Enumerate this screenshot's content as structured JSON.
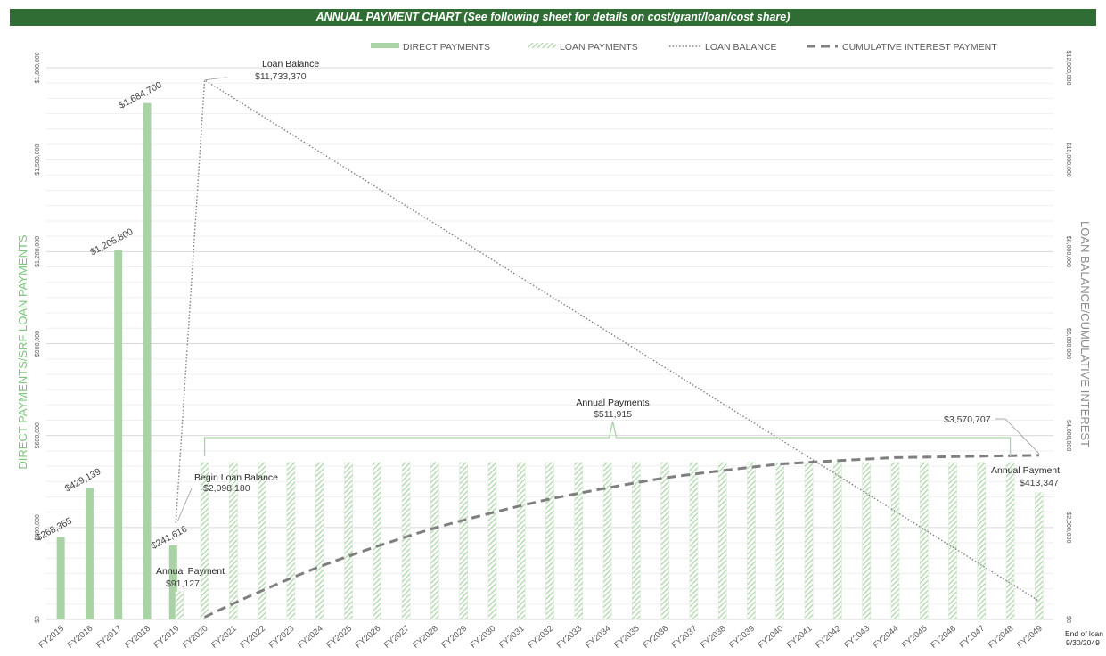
{
  "title": "ANNUAL PAYMENT CHART (See following sheet for details on cost/grant/loan/cost share)",
  "colors": {
    "title_bg": "#2f6d35",
    "direct": "#a9d3a5",
    "loan_hatch": "#a9d3a5",
    "loan_balance": "#7f7f7f",
    "cumulative_interest": "#7f7f7f",
    "left_axis_title": "#7bc47a",
    "bracket": "#a9d3a5"
  },
  "legend": {
    "direct": "DIRECT PAYMENTS",
    "loan": "LOAN PAYMENTS",
    "balance": "LOAN BALANCE",
    "interest": "CUMULATIVE INTEREST PAYMENT"
  },
  "axis": {
    "left_title": "DIRECT PAYMENTS/SRF LOAN PAYMENTS",
    "right_title": "LOAN BALANCE/CUMULATIVE INTEREST",
    "left_ticks": [
      "$0",
      "$300,000",
      "$600,000",
      "$900,000",
      "$1,200,000",
      "$1,500,000",
      "$1,800,000"
    ],
    "right_ticks": [
      "$0",
      "$2,000,000",
      "$4,000,000",
      "$6,000,000",
      "$8,000,000",
      "$10,000,000",
      "$12,000,000"
    ]
  },
  "annotations": {
    "loan_balance_label": "Loan Balance",
    "loan_balance_value": "$11,733,370",
    "begin_label": "Begin Loan Balance",
    "begin_value": "$2,098,180",
    "annual_payments_label": "Annual Payments",
    "annual_payments_value": "$511,915",
    "first_payment_label": "Annual Payment",
    "first_payment_value": "$91,127",
    "last_payment_label": "Annual Payment",
    "last_payment_value": "$413,347",
    "interest_total": "$3,570,707",
    "end_of_loan_line1": "End of loan",
    "end_of_loan_line2": "9/30/2049"
  },
  "chart_data": {
    "type": "bar",
    "title": "ANNUAL PAYMENT CHART (See following sheet for details on cost/grant/loan/cost share)",
    "categories": [
      "FY2015",
      "FY2016",
      "FY2017",
      "FY2018",
      "FY2019",
      "FY2020",
      "FY2021",
      "FY2022",
      "FY2023",
      "FY2024",
      "FY2025",
      "FY2026",
      "FY2027",
      "FY2028",
      "FY2029",
      "FY2030",
      "FY2031",
      "FY2032",
      "FY2033",
      "FY2034",
      "FY2035",
      "FY2036",
      "FY2037",
      "FY2038",
      "FY2039",
      "FY2040",
      "FY2041",
      "FY2042",
      "FY2043",
      "FY2044",
      "FY2045",
      "FY2046",
      "FY2047",
      "FY2048",
      "FY2049"
    ],
    "ylim_left": [
      0,
      1800000
    ],
    "ylim_right": [
      0,
      12000000
    ],
    "legend_position": "top",
    "grid": true,
    "series": [
      {
        "name": "DIRECT PAYMENTS",
        "type": "bar",
        "axis": "left",
        "values": [
          268365,
          429139,
          1205800,
          1684700,
          241616,
          null,
          null,
          null,
          null,
          null,
          null,
          null,
          null,
          null,
          null,
          null,
          null,
          null,
          null,
          null,
          null,
          null,
          null,
          null,
          null,
          null,
          null,
          null,
          null,
          null,
          null,
          null,
          null,
          null,
          null
        ],
        "labels": [
          "$268,365",
          "$429,139",
          "$1,205,800",
          "$1,684,700",
          "$241,616"
        ]
      },
      {
        "name": "LOAN PAYMENTS",
        "type": "bar",
        "axis": "left",
        "values": [
          null,
          null,
          null,
          null,
          91127,
          511915,
          511915,
          511915,
          511915,
          511915,
          511915,
          511915,
          511915,
          511915,
          511915,
          511915,
          511915,
          511915,
          511915,
          511915,
          511915,
          511915,
          511915,
          511915,
          511915,
          511915,
          511915,
          511915,
          511915,
          511915,
          511915,
          511915,
          511915,
          511915,
          413347
        ]
      },
      {
        "name": "LOAN BALANCE",
        "type": "line",
        "axis": "right",
        "x": [
          "FY2019",
          "FY2020",
          "FY2049"
        ],
        "values": [
          2098180,
          11733370,
          400000
        ]
      },
      {
        "name": "CUMULATIVE INTEREST PAYMENT",
        "type": "line",
        "axis": "right",
        "x": [
          "FY2020",
          "FY2024",
          "FY2028",
          "FY2032",
          "FY2036",
          "FY2040",
          "FY2044",
          "FY2049"
        ],
        "values": [
          50000,
          1150000,
          1990000,
          2620000,
          3080000,
          3380000,
          3520000,
          3570707
        ]
      }
    ]
  }
}
